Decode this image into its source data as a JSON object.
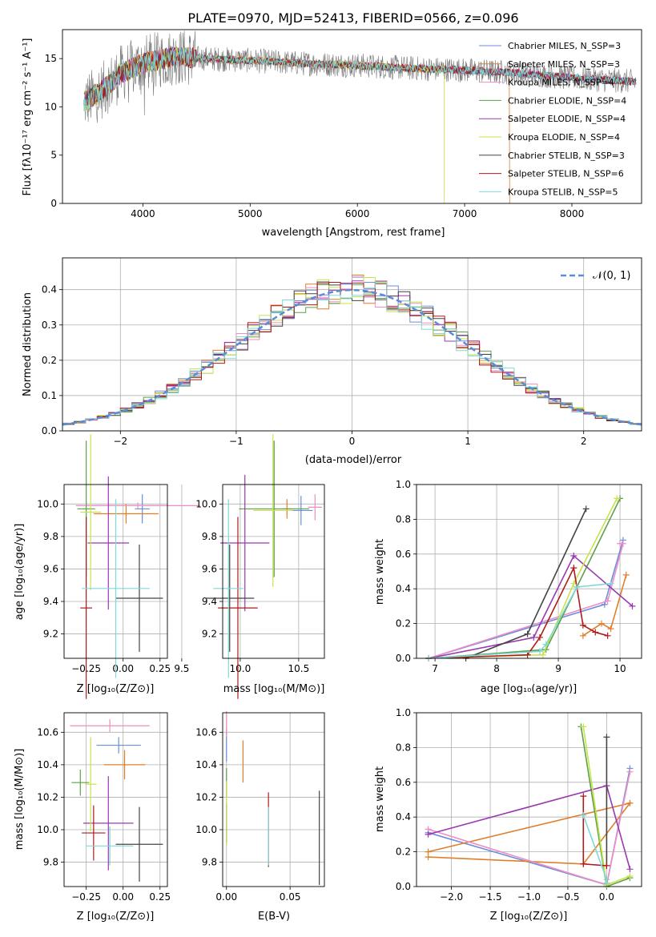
{
  "series_names": [
    "Chabrier MILES",
    "Salpeter MILES",
    "Kroupa MILES",
    "Chabrier ELODIE",
    "Salpeter ELODIE",
    "Kroupa ELODIE",
    "Chabrier STELIB",
    "Salpeter STELIB",
    "Kroupa STELIB"
  ],
  "series_nssp": [
    3,
    3,
    4,
    4,
    4,
    4,
    3,
    6,
    5
  ],
  "series_colors": [
    "#6a8ee0",
    "#e07f2b",
    "#ee8ec2",
    "#5ca04a",
    "#9b38b0",
    "#c8e34a",
    "#444444",
    "#b01a1a",
    "#7fd8d8"
  ],
  "chart_data": [
    {
      "type": "line",
      "title": "PLATE=0970, MJD=52413, FIBERID=0566, z=0.096",
      "xlabel": "wavelength [Angstrom, rest frame]",
      "ylabel": "Flux [fλ10⁻¹⁷ erg cm⁻² s⁻¹ A⁻¹]",
      "xlim": [
        3250,
        8650
      ],
      "ylim": [
        0,
        18
      ],
      "x_ticks": [
        "4000",
        "5000",
        "6000",
        "7000",
        "8000"
      ],
      "y_ticks": [
        "0",
        "5",
        "10",
        "15"
      ],
      "legend_labels": [
        "Chabrier MILES, N_SSP=3",
        "Salpeter MILES, N_SSP=3",
        "Kroupa MILES, N_SSP=4",
        "Chabrier ELODIE, N_SSP=4",
        "Salpeter ELODIE, N_SSP=4",
        "Kroupa ELODIE, N_SSP=4",
        "Chabrier STELIB, N_SSP=3",
        "Salpeter STELIB, N_SSP=6",
        "Kroupa STELIB, N_SSP=5"
      ],
      "legend_position": "upper right",
      "spectrum_anchor_points": {
        "wavelength": [
          3450,
          3600,
          3800,
          4000,
          4300,
          4600,
          5000,
          5500,
          6000,
          6500,
          7000,
          7500,
          8000,
          8600
        ],
        "flux": [
          10.5,
          11.5,
          13.5,
          14.5,
          15.2,
          15.0,
          14.8,
          14.5,
          14.3,
          14.0,
          13.8,
          13.5,
          13.0,
          12.6
        ]
      }
    },
    {
      "type": "histogram",
      "xlabel": "(data-model)/error",
      "ylabel": "Normed distribution",
      "xlim": [
        -2.5,
        2.5
      ],
      "ylim": [
        0,
        0.49
      ],
      "x_ticks": [
        "−2",
        "−1",
        "0",
        "1",
        "2"
      ],
      "y_ticks": [
        "0.0",
        "0.1",
        "0.2",
        "0.3",
        "0.4"
      ],
      "reference_curve": {
        "name": "𝒩(0, 1)",
        "mean": 0,
        "std": 1
      },
      "legend_position": "upper right"
    },
    {
      "type": "scatter",
      "xlabel": "Z [log₁₀(Z/Z⊙)]",
      "ylabel": "age  [log₁₀(age/yr)]",
      "xlim": [
        -0.4,
        0.3
      ],
      "ylim": [
        9.05,
        10.12
      ],
      "x_ticks": [
        "−0.25",
        "0.00",
        "0.25"
      ],
      "y_ticks": [
        "9.2",
        "9.4",
        "9.6",
        "9.8",
        "10.0"
      ],
      "points": [
        {
          "x": 0.13,
          "y": 9.97,
          "xerr": 0.05,
          "yerr": 0.09
        },
        {
          "x": 0.02,
          "y": 9.94,
          "xerr": 0.22,
          "yerr": 0.06
        },
        {
          "x": 0.1,
          "y": 9.99,
          "xerr": 0.42,
          "yerr": 0.02
        },
        {
          "x": -0.25,
          "y": 9.97,
          "xerr": 0.06,
          "yerr": 0.42
        },
        {
          "x": -0.1,
          "y": 9.76,
          "xerr": 0.14,
          "yerr": 0.41
        },
        {
          "x": -0.22,
          "y": 9.95,
          "xerr": 0.07,
          "yerr": 0.48
        },
        {
          "x": 0.11,
          "y": 9.42,
          "xerr": 0.16,
          "yerr": 0.33
        },
        {
          "x": -0.25,
          "y": 9.36,
          "xerr": 0.04,
          "yerr": 0.56
        },
        {
          "x": -0.05,
          "y": 9.48,
          "xerr": 0.23,
          "yerr": 0.55
        }
      ]
    },
    {
      "type": "scatter",
      "xlabel": "mass [log₁₀(M/M⊙)]",
      "ylabel": "",
      "xlim": [
        9.85,
        10.72
      ],
      "ylim": [
        9.05,
        10.12
      ],
      "x_ticks": [
        "9.5",
        "10.0",
        "10.5"
      ],
      "y_ticks": [
        "9.2",
        "9.4",
        "9.6",
        "9.8",
        "10.0"
      ],
      "points": [
        {
          "x": 10.52,
          "y": 9.96,
          "xerr": 0.1,
          "yerr": 0.09
        },
        {
          "x": 10.4,
          "y": 9.97,
          "xerr": 0.04,
          "yerr": 0.06
        },
        {
          "x": 10.64,
          "y": 9.98,
          "xerr": 0.06,
          "yerr": 0.08
        },
        {
          "x": 10.29,
          "y": 9.97,
          "xerr": 0.3,
          "yerr": 0.42
        },
        {
          "x": 10.04,
          "y": 9.76,
          "xerr": 0.21,
          "yerr": 0.42
        },
        {
          "x": 10.28,
          "y": 9.96,
          "xerr": 0.17,
          "yerr": 0.47
        },
        {
          "x": 9.91,
          "y": 9.42,
          "xerr": 0.21,
          "yerr": 0.33
        },
        {
          "x": 9.98,
          "y": 9.36,
          "xerr": 0.17,
          "yerr": 0.56
        },
        {
          "x": 9.9,
          "y": 9.48,
          "xerr": 0.13,
          "yerr": 0.55
        }
      ]
    },
    {
      "type": "line",
      "xlabel": "age  [log₁₀(age/yr)]",
      "ylabel": "mass weight",
      "xlim": [
        6.7,
        10.35
      ],
      "ylim": [
        0,
        1.0
      ],
      "x_ticks": [
        "7",
        "8",
        "9",
        "10"
      ],
      "y_ticks": [
        "0.0",
        "0.2",
        "0.4",
        "0.6",
        "0.8",
        "1.0"
      ],
      "series": [
        {
          "x": [
            6.9,
            9.75,
            10.05
          ],
          "y": [
            0.0,
            0.31,
            0.68
          ]
        },
        {
          "x": [
            9.4,
            9.7,
            9.85,
            10.1
          ],
          "y": [
            0.13,
            0.2,
            0.17,
            0.48
          ]
        },
        {
          "x": [
            6.9,
            9.8,
            10.05,
            10.0
          ],
          "y": [
            0.0,
            0.33,
            0.66,
            0.66
          ]
        },
        {
          "x": [
            6.9,
            8.8,
            9.3,
            10.0
          ],
          "y": [
            0.0,
            0.05,
            0.41,
            0.92
          ]
        },
        {
          "x": [
            6.9,
            8.6,
            9.25,
            10.2
          ],
          "y": [
            0.0,
            0.12,
            0.59,
            0.3
          ]
        },
        {
          "x": [
            6.9,
            8.75,
            9.25,
            9.95
          ],
          "y": [
            0.0,
            0.02,
            0.43,
            0.92
          ]
        },
        {
          "x": [
            7.5,
            8.5,
            9.45
          ],
          "y": [
            0.0,
            0.14,
            0.86
          ]
        },
        {
          "x": [
            6.9,
            8.5,
            8.7,
            9.25,
            9.4,
            9.6,
            9.8
          ],
          "y": [
            0.0,
            0.02,
            0.12,
            0.52,
            0.19,
            0.15,
            0.13
          ]
        },
        {
          "x": [
            6.9,
            8.7,
            8.8,
            9.3,
            9.85
          ],
          "y": [
            0.0,
            0.04,
            0.08,
            0.41,
            0.43
          ]
        }
      ]
    },
    {
      "type": "scatter",
      "xlabel": "Z [log₁₀(Z/Z⊙)]",
      "ylabel": "mass [log₁₀(M/M⊙)]",
      "xlim": [
        -0.4,
        0.3
      ],
      "ylim": [
        9.65,
        10.72
      ],
      "x_ticks": [
        "−0.25",
        "0.00",
        "0.25"
      ],
      "y_ticks": [
        "9.8",
        "10.0",
        "10.2",
        "10.4",
        "10.6"
      ],
      "points": [
        {
          "x": -0.03,
          "y": 10.52,
          "xerr": 0.15,
          "yerr": 0.05
        },
        {
          "x": 0.01,
          "y": 10.4,
          "xerr": 0.14,
          "yerr": 0.09
        },
        {
          "x": -0.09,
          "y": 10.64,
          "xerr": 0.27,
          "yerr": 0.04
        },
        {
          "x": -0.29,
          "y": 10.29,
          "xerr": 0.06,
          "yerr": 0.08
        },
        {
          "x": -0.1,
          "y": 10.04,
          "xerr": 0.17,
          "yerr": 0.29
        },
        {
          "x": -0.22,
          "y": 10.28,
          "xerr": 0.04,
          "yerr": 0.29
        },
        {
          "x": 0.11,
          "y": 9.91,
          "xerr": 0.16,
          "yerr": 0.23
        },
        {
          "x": -0.2,
          "y": 9.98,
          "xerr": 0.08,
          "yerr": 0.17
        },
        {
          "x": -0.09,
          "y": 9.9,
          "xerr": 0.16,
          "yerr": 0.12
        }
      ]
    },
    {
      "type": "scatter",
      "xlabel": "E(B-V)",
      "ylabel": "",
      "xlim": [
        -0.003,
        0.077
      ],
      "ylim": [
        9.65,
        10.72
      ],
      "x_ticks": [
        "0.00",
        "0.05"
      ],
      "y_ticks": [
        "9.8",
        "10.0",
        "10.2",
        "10.4",
        "10.6"
      ],
      "points": [
        {
          "x": 0.0,
          "y": 10.52,
          "xerr": 0,
          "yerr": 0.1
        },
        {
          "x": 0.013,
          "y": 10.42,
          "xerr": 0,
          "yerr": 0.13
        },
        {
          "x": 0.0,
          "y": 10.65,
          "xerr": 0,
          "yerr": 0.08
        },
        {
          "x": 0.0,
          "y": 10.29,
          "xerr": 0,
          "yerr": 0.09
        },
        {
          "x": 0.0,
          "y": 10.04,
          "xerr": 0,
          "yerr": 0.12
        },
        {
          "x": 0.0,
          "y": 10.1,
          "xerr": 0,
          "yerr": 0.2
        },
        {
          "x": 0.073,
          "y": 9.95,
          "xerr": 0,
          "yerr": 0.29
        },
        {
          "x": 0.033,
          "y": 10.0,
          "xerr": 0,
          "yerr": 0.23
        },
        {
          "x": 0.033,
          "y": 9.96,
          "xerr": 0,
          "yerr": 0.18
        }
      ]
    },
    {
      "type": "line",
      "xlabel": "Z [log₁₀(Z/Z⊙)]",
      "ylabel": "mass weight",
      "xlim": [
        -2.45,
        0.45
      ],
      "ylim": [
        0,
        1.0
      ],
      "x_ticks": [
        "−2.0",
        "−1.5",
        "−1.0",
        "−0.5",
        "0.0"
      ],
      "y_ticks": [
        "0.0",
        "0.2",
        "0.4",
        "0.6",
        "0.8",
        "1.0"
      ],
      "series": [
        {
          "x": [
            -2.3,
            0.0,
            0.3
          ],
          "y": [
            0.31,
            0.01,
            0.68
          ]
        },
        {
          "x": [
            -2.3,
            -0.3,
            0.3,
            -2.3
          ],
          "y": [
            0.17,
            0.13,
            0.48,
            0.2
          ]
        },
        {
          "x": [
            -2.3,
            0.0,
            0.3
          ],
          "y": [
            0.33,
            0.01,
            0.66
          ]
        },
        {
          "x": [
            -0.33,
            0.0,
            0.3
          ],
          "y": [
            0.92,
            0.0,
            0.05
          ]
        },
        {
          "x": [
            -2.3,
            0.0,
            0.3
          ],
          "y": [
            0.3,
            0.58,
            0.1
          ]
        },
        {
          "x": [
            -0.3,
            0.0,
            0.3
          ],
          "y": [
            0.92,
            0.01,
            0.06
          ]
        },
        {
          "x": [
            0.0,
            0.0
          ],
          "y": [
            0.86,
            0.12
          ]
        },
        {
          "x": [
            -0.3,
            -0.3,
            0.0,
            0.0
          ],
          "y": [
            0.52,
            0.13,
            0.12,
            0.12
          ]
        },
        {
          "x": [
            -0.3,
            0.0,
            0.0
          ],
          "y": [
            0.41,
            0.04,
            0.02
          ]
        }
      ]
    }
  ]
}
